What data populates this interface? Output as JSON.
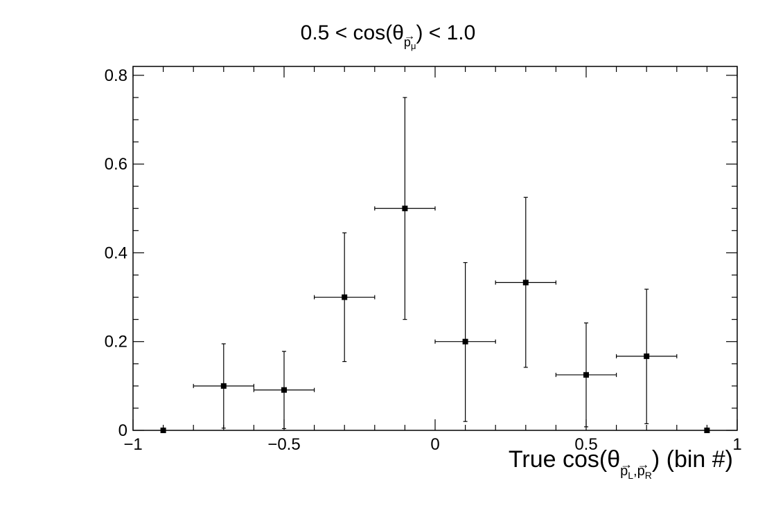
{
  "chart_data": {
    "type": "scatter",
    "title": {
      "prefix": "0.5 < cos(θ",
      "vec_letter": "p",
      "vec_index": "μ",
      "suffix": ") < 1.0"
    },
    "xlabel": {
      "prefix": "True cos(θ",
      "vec1_letter": "p",
      "vec1_index": "L",
      "comma": ",",
      "vec2_letter": "p",
      "vec2_index": "R",
      "suffix": ") (bin #)"
    },
    "ylabel": "",
    "xlim": [
      -1,
      1
    ],
    "ylim": [
      0,
      0.82
    ],
    "x_tick_labels": [
      {
        "value": -1,
        "label": "−1"
      },
      {
        "value": -0.5,
        "label": "−0.5"
      },
      {
        "value": 0,
        "label": "0"
      },
      {
        "value": 0.5,
        "label": "0.5"
      },
      {
        "value": 1,
        "label": "1"
      }
    ],
    "y_tick_labels": [
      {
        "value": 0,
        "label": "0"
      },
      {
        "value": 0.2,
        "label": "0.2"
      },
      {
        "value": 0.4,
        "label": "0.4"
      },
      {
        "value": 0.6,
        "label": "0.6"
      },
      {
        "value": 0.8,
        "label": "0.8"
      }
    ],
    "grid": false,
    "points": [
      {
        "x": -0.9,
        "y": 0.0,
        "xerr": 0.1,
        "ylow": 0.0,
        "yhigh": 0.0
      },
      {
        "x": -0.7,
        "y": 0.1,
        "xerr": 0.1,
        "ylow": 0.005,
        "yhigh": 0.195
      },
      {
        "x": -0.5,
        "y": 0.091,
        "xerr": 0.1,
        "ylow": 0.004,
        "yhigh": 0.178
      },
      {
        "x": -0.3,
        "y": 0.3,
        "xerr": 0.1,
        "ylow": 0.155,
        "yhigh": 0.445
      },
      {
        "x": -0.1,
        "y": 0.5,
        "xerr": 0.1,
        "ylow": 0.25,
        "yhigh": 0.75
      },
      {
        "x": 0.1,
        "y": 0.2,
        "xerr": 0.1,
        "ylow": 0.02,
        "yhigh": 0.378
      },
      {
        "x": 0.3,
        "y": 0.333,
        "xerr": 0.1,
        "ylow": 0.142,
        "yhigh": 0.525
      },
      {
        "x": 0.5,
        "y": 0.125,
        "xerr": 0.1,
        "ylow": 0.008,
        "yhigh": 0.242
      },
      {
        "x": 0.7,
        "y": 0.167,
        "xerr": 0.1,
        "ylow": 0.015,
        "yhigh": 0.318
      },
      {
        "x": 0.9,
        "y": 0.0,
        "xerr": 0.1,
        "ylow": 0.0,
        "yhigh": 0.0
      }
    ]
  }
}
